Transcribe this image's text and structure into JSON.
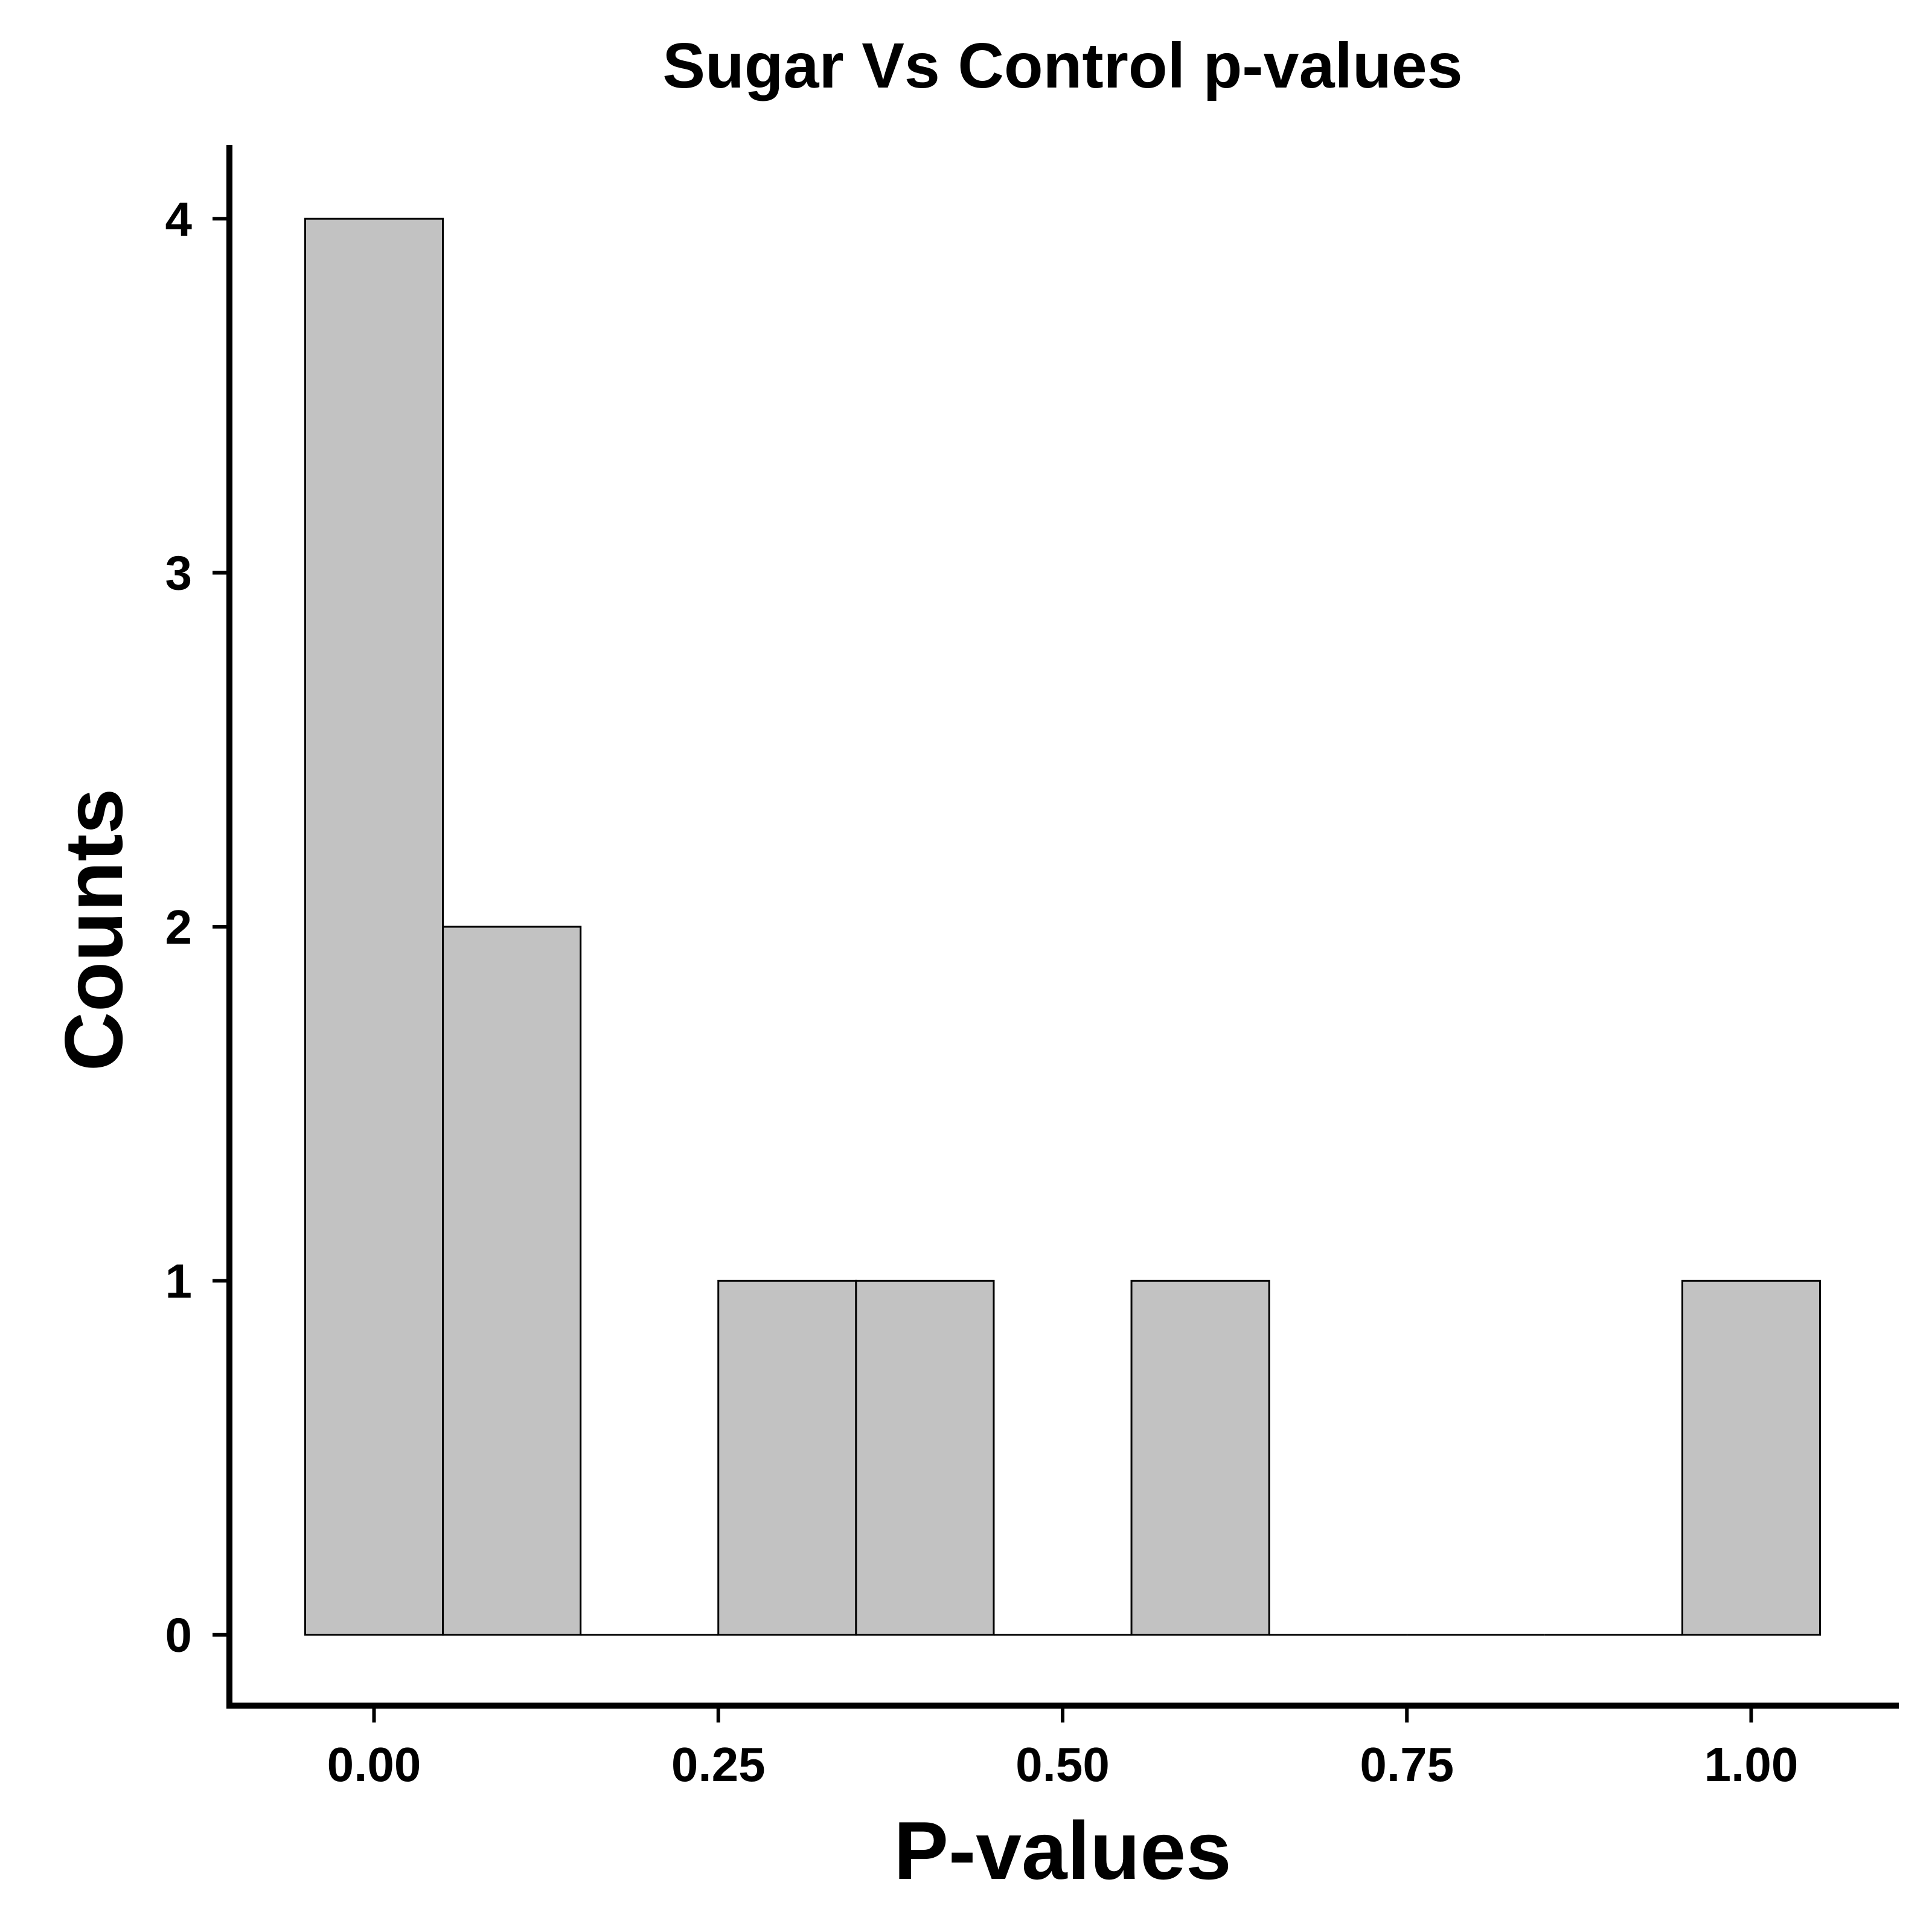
{
  "chart_data": {
    "type": "bar",
    "title": "Sugar Vs Control p-values",
    "xlabel": "P-values",
    "ylabel": "Counts",
    "bin_width": 0.1,
    "bins": [
      {
        "center": 0.0,
        "count": 4
      },
      {
        "center": 0.1,
        "count": 2
      },
      {
        "center": 0.2,
        "count": 0
      },
      {
        "center": 0.3,
        "count": 1
      },
      {
        "center": 0.4,
        "count": 1
      },
      {
        "center": 0.5,
        "count": 0
      },
      {
        "center": 0.6,
        "count": 1
      },
      {
        "center": 0.7,
        "count": 0
      },
      {
        "center": 0.8,
        "count": 0
      },
      {
        "center": 0.9,
        "count": 0
      },
      {
        "center": 1.0,
        "count": 1
      }
    ],
    "xticks": [
      "0.00",
      "0.25",
      "0.50",
      "0.75",
      "1.00"
    ],
    "yticks": [
      "0",
      "1",
      "2",
      "3",
      "4"
    ],
    "xlim": [
      -0.105,
      1.105
    ],
    "ylim": [
      -0.2,
      4.2
    ],
    "grid": false,
    "legend": "none",
    "colors": {
      "bar_fill": "#c2c2c2",
      "bar_stroke": "#000000",
      "axis": "#000000"
    }
  }
}
